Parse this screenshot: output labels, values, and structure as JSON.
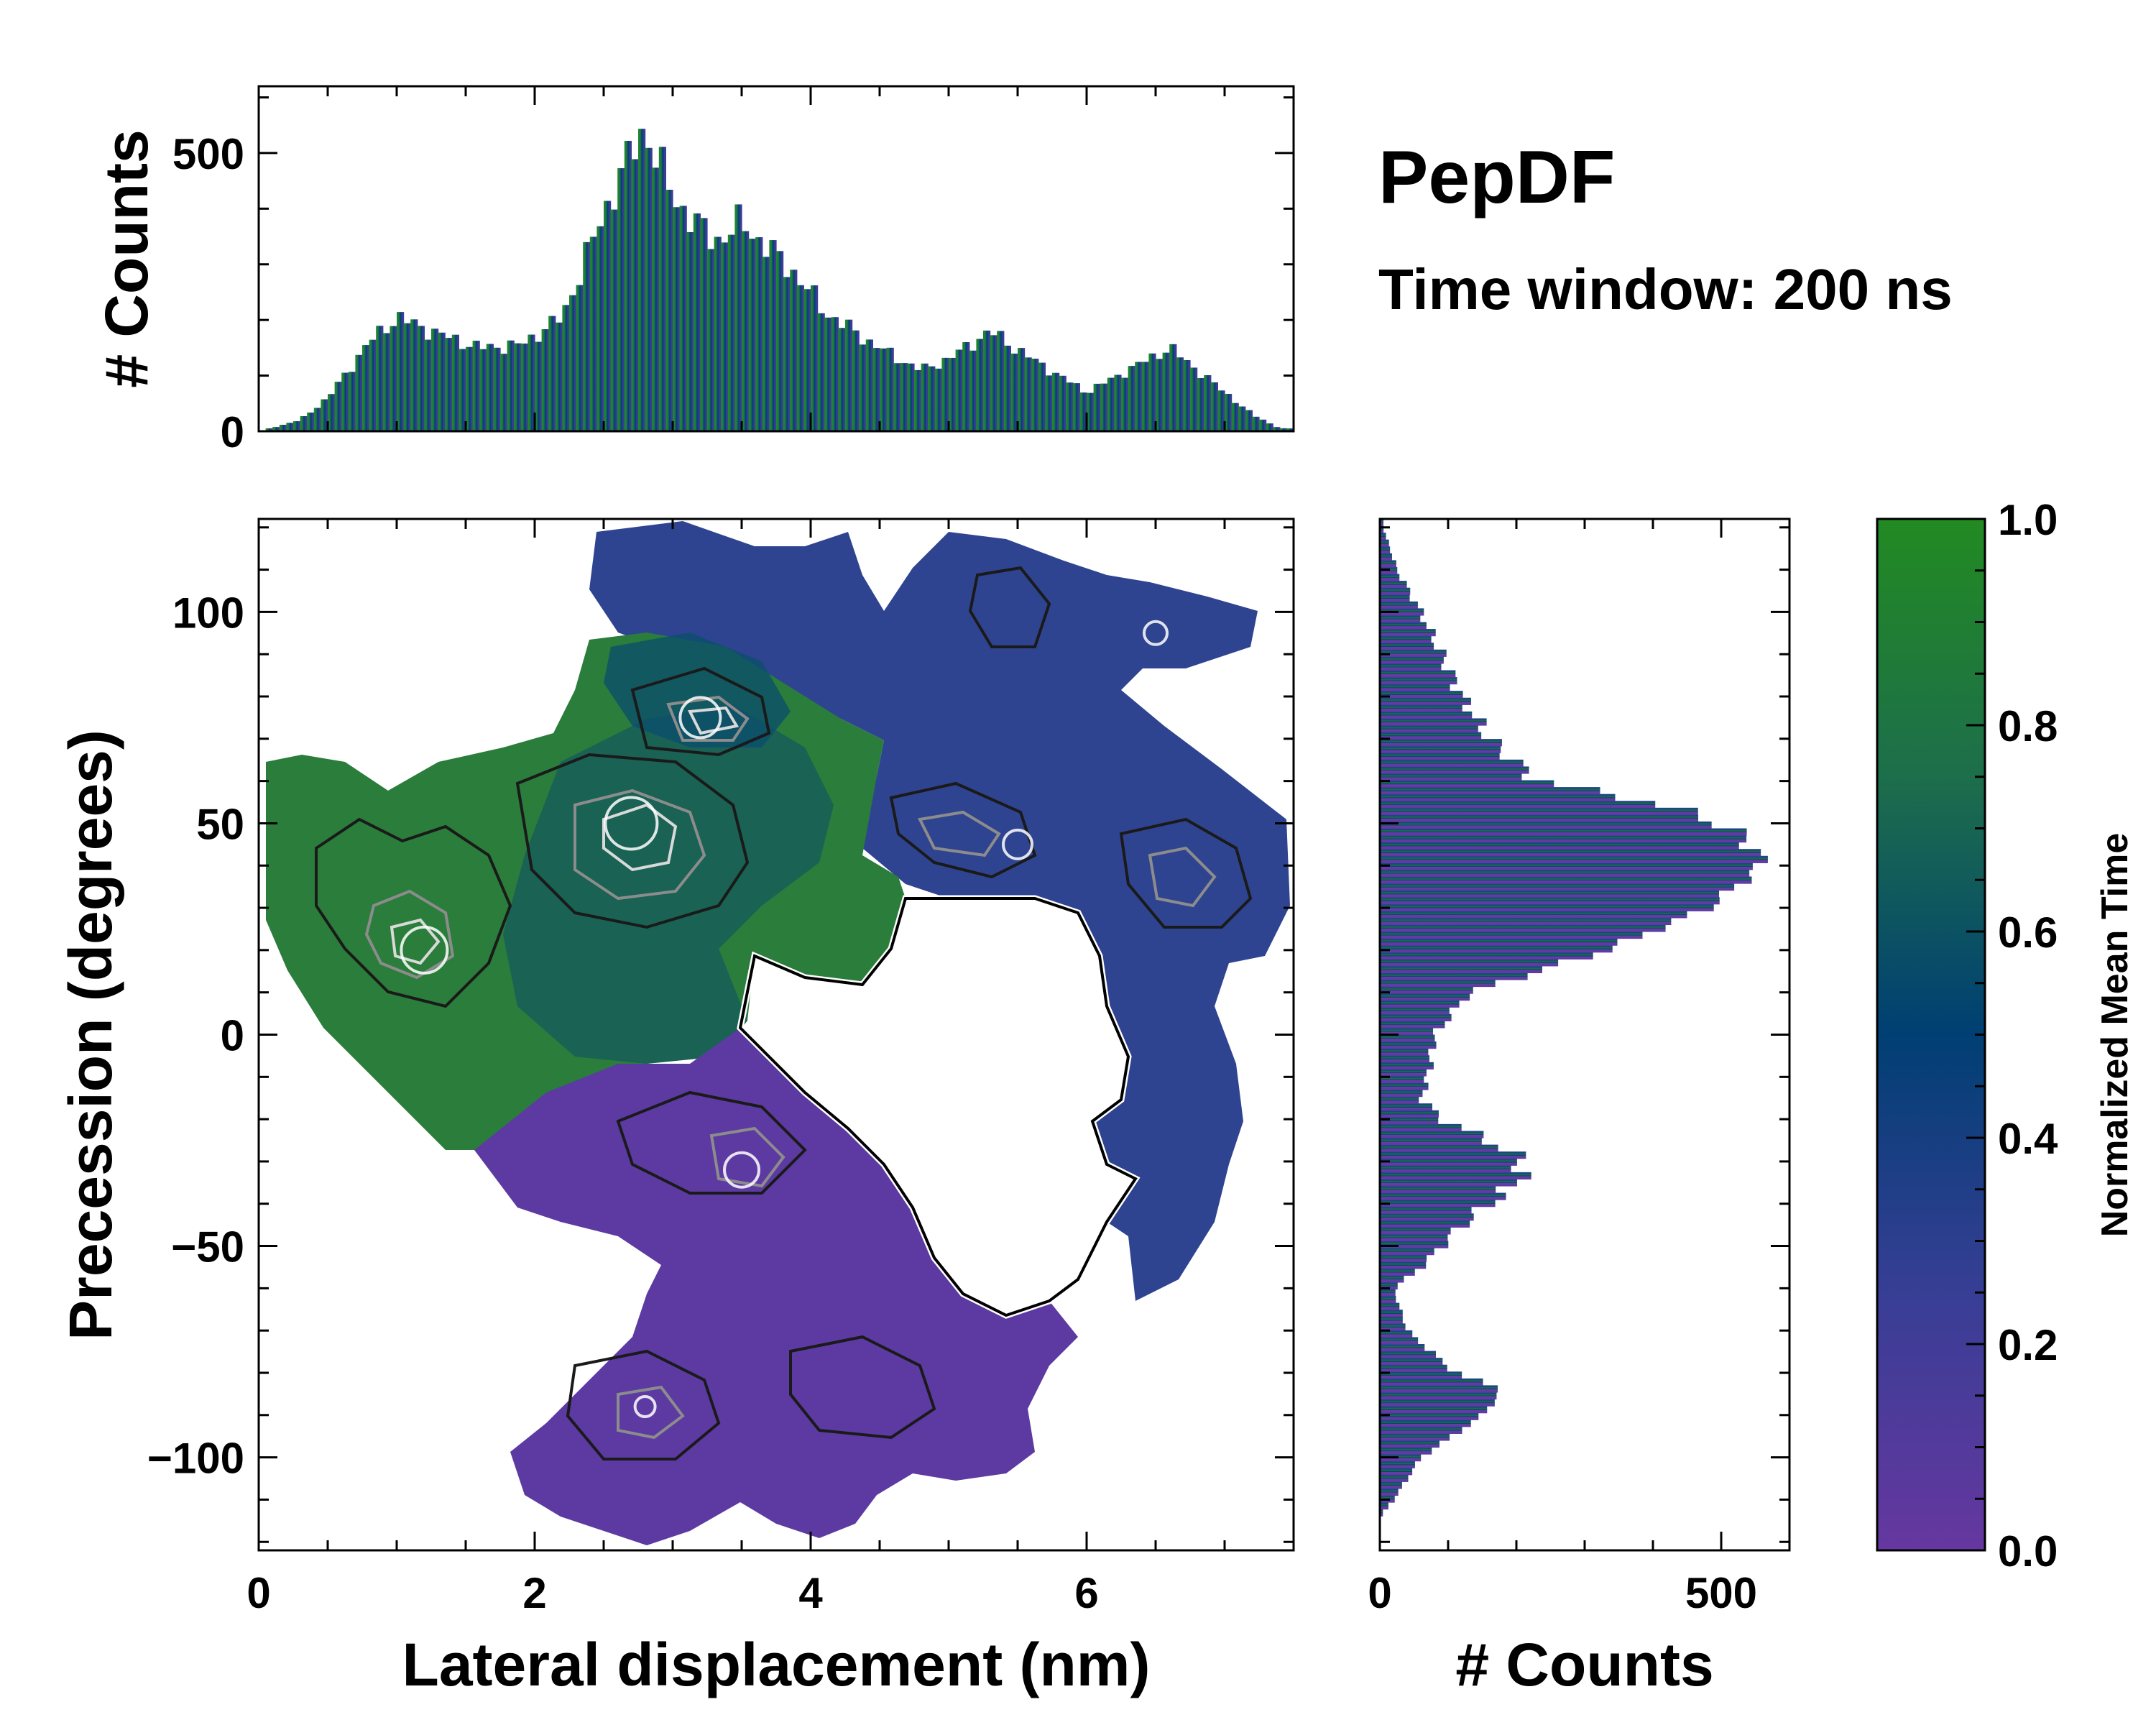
{
  "header": {
    "title": "PepDF",
    "subtitle": "Time window: 200 ns"
  },
  "chart_data": [
    {
      "id": "main-heatmap",
      "type": "heatmap",
      "xlabel": "Lateral displacement (nm)",
      "ylabel": "Precession (degrees)",
      "xlim": [
        0,
        7.5
      ],
      "ylim": [
        -122,
        122
      ],
      "x_ticks": [
        0,
        2,
        4,
        6
      ],
      "y_ticks": [
        100,
        50,
        0,
        -50,
        -100
      ],
      "y_tick_labels": [
        "100",
        "50",
        "0",
        "−50",
        "−100"
      ],
      "regions": [
        {
          "name": "upper-right lobe",
          "mean_time_range": [
            0.3,
            0.45
          ],
          "x_range": [
            2.4,
            7.4
          ],
          "y_range": [
            -60,
            120
          ]
        },
        {
          "name": "left green lobe",
          "mean_time_range": [
            0.7,
            0.95
          ],
          "x_range": [
            0,
            4.6
          ],
          "y_range": [
            -30,
            95
          ]
        },
        {
          "name": "lower purple lobe",
          "mean_time_range": [
            0.05,
            0.2
          ],
          "x_range": [
            1.8,
            5.8
          ],
          "y_range": [
            -115,
            -5
          ]
        }
      ],
      "density_peaks": [
        {
          "x": 1.2,
          "y": 20,
          "rank": 2
        },
        {
          "x": 2.7,
          "y": 50,
          "rank": 1
        },
        {
          "x": 3.2,
          "y": 75,
          "rank": 3
        },
        {
          "x": 3.5,
          "y": -32,
          "rank": 4
        },
        {
          "x": 5.5,
          "y": 45,
          "rank": 5
        },
        {
          "x": 6.5,
          "y": 95,
          "rank": 6
        },
        {
          "x": 2.8,
          "y": -88,
          "rank": 7
        }
      ]
    },
    {
      "id": "top-histogram",
      "type": "bar",
      "ylabel": "# Counts",
      "xlim": [
        0,
        7.5
      ],
      "ylim": [
        0,
        620
      ],
      "y_ticks": [
        0,
        500
      ],
      "profile_x": [
        0.0,
        0.3,
        0.5,
        0.8,
        1.0,
        1.3,
        1.6,
        1.9,
        2.2,
        2.4,
        2.6,
        2.8,
        3.0,
        3.3,
        3.5,
        3.9,
        4.1,
        4.4,
        4.6,
        4.8,
        5.0,
        5.3,
        5.6,
        6.0,
        6.3,
        6.6,
        6.8,
        7.0,
        7.2,
        7.4
      ],
      "profile_counts": [
        0,
        20,
        60,
        160,
        205,
        175,
        150,
        155,
        205,
        330,
        450,
        545,
        420,
        340,
        375,
        280,
        215,
        165,
        135,
        110,
        130,
        180,
        130,
        70,
        110,
        150,
        110,
        70,
        30,
        5
      ]
    },
    {
      "id": "right-histogram",
      "type": "bar",
      "xlabel": "# Counts",
      "xlim": [
        0,
        600
      ],
      "x_ticks": [
        0,
        500
      ],
      "ylim": [
        -122,
        122
      ],
      "profile_y": [
        -114,
        -110,
        -100,
        -90,
        -84,
        -80,
        -70,
        -60,
        -55,
        -45,
        -35,
        -30,
        -25,
        -20,
        -15,
        -10,
        0,
        10,
        15,
        20,
        30,
        40,
        45,
        50,
        55,
        60,
        70,
        80,
        90,
        100,
        110,
        120
      ],
      "profile_counts": [
        0,
        20,
        60,
        150,
        180,
        110,
        40,
        20,
        60,
        120,
        200,
        210,
        160,
        90,
        60,
        70,
        80,
        130,
        230,
        330,
        480,
        560,
        545,
        500,
        400,
        230,
        160,
        120,
        90,
        60,
        25,
        5
      ]
    },
    {
      "id": "colorbar",
      "type": "colorbar",
      "label": "Normalized Mean Time",
      "range": [
        0.0,
        1.0
      ],
      "ticks": [
        "1.0",
        "0.8",
        "0.6",
        "0.4",
        "0.2",
        "0.0"
      ],
      "stops": [
        {
          "value": 0.0,
          "color": "#6637a0"
        },
        {
          "value": 0.25,
          "color": "#373e95"
        },
        {
          "value": 0.5,
          "color": "#003f73"
        },
        {
          "value": 0.75,
          "color": "#1d6e4b"
        },
        {
          "value": 1.0,
          "color": "#228a22"
        }
      ]
    }
  ]
}
